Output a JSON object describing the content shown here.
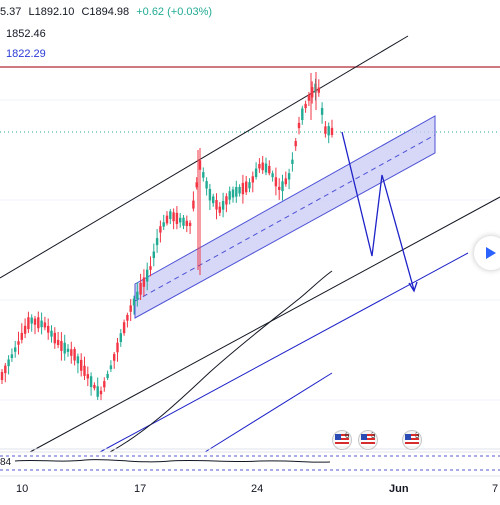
{
  "ohlc": {
    "open": "5.37",
    "low": "L1892.10",
    "close": "C1894.98",
    "change": "+0.62 (+0.03%)"
  },
  "price_labels": {
    "level1": "1852.46",
    "level2": "1822.29"
  },
  "oscillator_label": "84",
  "x_axis": [
    "10",
    "17",
    "24",
    "Jun",
    "7"
  ],
  "events": [
    {
      "icon": "us-flag-icon",
      "count": "6"
    },
    {
      "icon": "us-flag-icon",
      "count": "3"
    },
    {
      "icon": "us-flag-icon",
      "count": "3"
    }
  ],
  "colors": {
    "up": "#22ab94",
    "down": "#f23645",
    "resistance": "#b22833",
    "channel": "#1e22c8",
    "band_fill": "#c9cbf5",
    "level2": "#2b3bd6"
  },
  "play_icon": "play-arrow-icon"
}
